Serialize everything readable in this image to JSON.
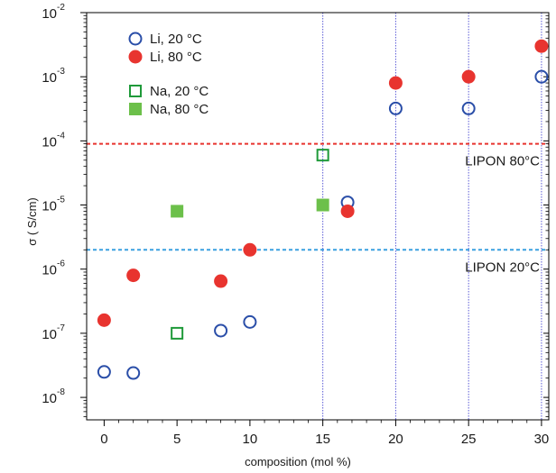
{
  "chart_data": {
    "type": "scatter",
    "xlabel": "composition (mol %)",
    "ylabel": "σ ( S/cm)",
    "xlim": [
      -1.2,
      30.5
    ],
    "ylim_log10": [
      -8.35,
      -2
    ],
    "y_scale": "log",
    "x_ticks": [
      0,
      5,
      10,
      15,
      20,
      25,
      30
    ],
    "y_ticks": [
      {
        "exp": -8,
        "label": "10",
        "sup": "-8"
      },
      {
        "exp": -7,
        "label": "10",
        "sup": "-7"
      },
      {
        "exp": -6,
        "label": "10",
        "sup": "-6"
      },
      {
        "exp": -5,
        "label": "10",
        "sup": "-5"
      },
      {
        "exp": -4,
        "label": "10",
        "sup": "-4"
      },
      {
        "exp": -3,
        "label": "10",
        "sup": "-3"
      },
      {
        "exp": -2,
        "label": "10",
        "sup": "-2"
      }
    ],
    "vertical_gridlines_x": [
      15,
      20,
      25,
      30
    ],
    "legend_position": "top-left",
    "series": [
      {
        "name": "Li, 20 °C",
        "marker": "circle",
        "filled": false,
        "color": "#2a4ea8",
        "points": [
          [
            0,
            2.5e-08
          ],
          [
            2,
            2.4e-08
          ],
          [
            8,
            1.1e-07
          ],
          [
            10,
            1.5e-07
          ],
          [
            16.7,
            1.1e-05
          ],
          [
            20,
            0.00032
          ],
          [
            25,
            0.00032
          ],
          [
            30,
            0.001
          ]
        ]
      },
      {
        "name": "Li, 80 °C",
        "marker": "circle",
        "filled": true,
        "color": "#e8342f",
        "points": [
          [
            0,
            1.6e-07
          ],
          [
            2,
            8e-07
          ],
          [
            8,
            6.5e-07
          ],
          [
            10,
            2e-06
          ],
          [
            16.7,
            8e-06
          ],
          [
            20,
            0.0008
          ],
          [
            25,
            0.001
          ],
          [
            30,
            0.003
          ]
        ]
      },
      {
        "name": "Na, 20 °C",
        "marker": "square",
        "filled": false,
        "color": "#1f9a3a",
        "points": [
          [
            5,
            1e-07
          ],
          [
            15,
            6e-05
          ]
        ]
      },
      {
        "name": "Na, 80 °C",
        "marker": "square",
        "filled": true,
        "color": "#6cc04a",
        "points": [
          [
            5,
            8e-06
          ],
          [
            15,
            1e-05
          ]
        ]
      }
    ],
    "reference_lines": [
      {
        "label": "LIPON 80°C",
        "y": 9e-05,
        "color": "#e8342f"
      },
      {
        "label": "LIPON 20°C",
        "y": 2e-06,
        "color": "#3aa0e0"
      }
    ]
  }
}
